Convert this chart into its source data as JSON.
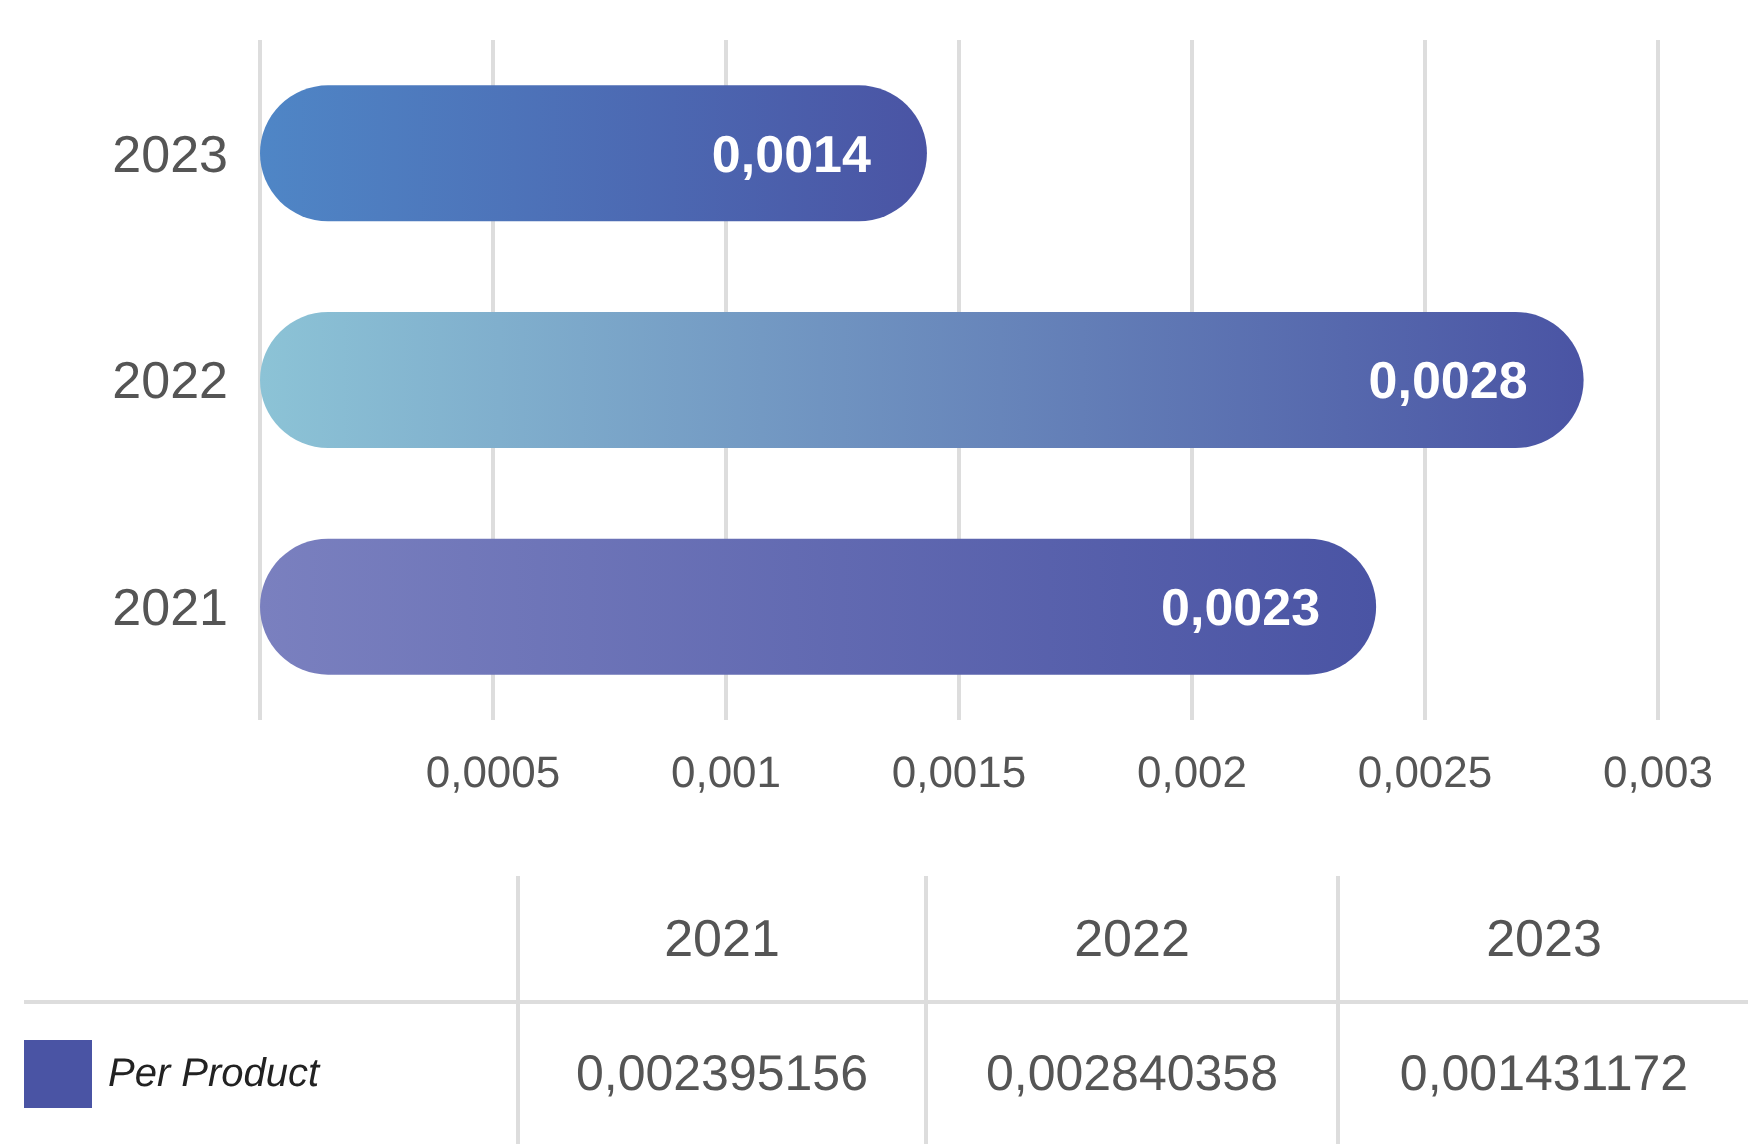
{
  "chart_data": {
    "type": "bar",
    "orientation": "horizontal",
    "categories": [
      "2023",
      "2022",
      "2021"
    ],
    "series": [
      {
        "name": "Per Product",
        "color": "#4a54a4",
        "values": [
          0.001431172,
          0.002840358,
          0.002395156
        ]
      }
    ],
    "colors": [
      "#4f86c6",
      "#8cc3d6",
      "#7a80bf"
    ],
    "value_labels": [
      "0,0014",
      "0,0028",
      "0,0023"
    ],
    "annotations": [
      "0,002395156",
      "0,002840358",
      "0,001431172"
    ],
    "xlim": [
      0,
      0.003
    ],
    "xticks": [
      {
        "value": 0.0005,
        "label": "0,0005"
      },
      {
        "value": 0.001,
        "label": "0,001"
      },
      {
        "value": 0.0015,
        "label": "0,0015"
      },
      {
        "value": 0.002,
        "label": "0,002"
      },
      {
        "value": 0.0025,
        "label": "0,0025"
      },
      {
        "value": 0.003,
        "label": "0,003"
      }
    ],
    "grid": "x",
    "legend": "bottom left"
  }
}
